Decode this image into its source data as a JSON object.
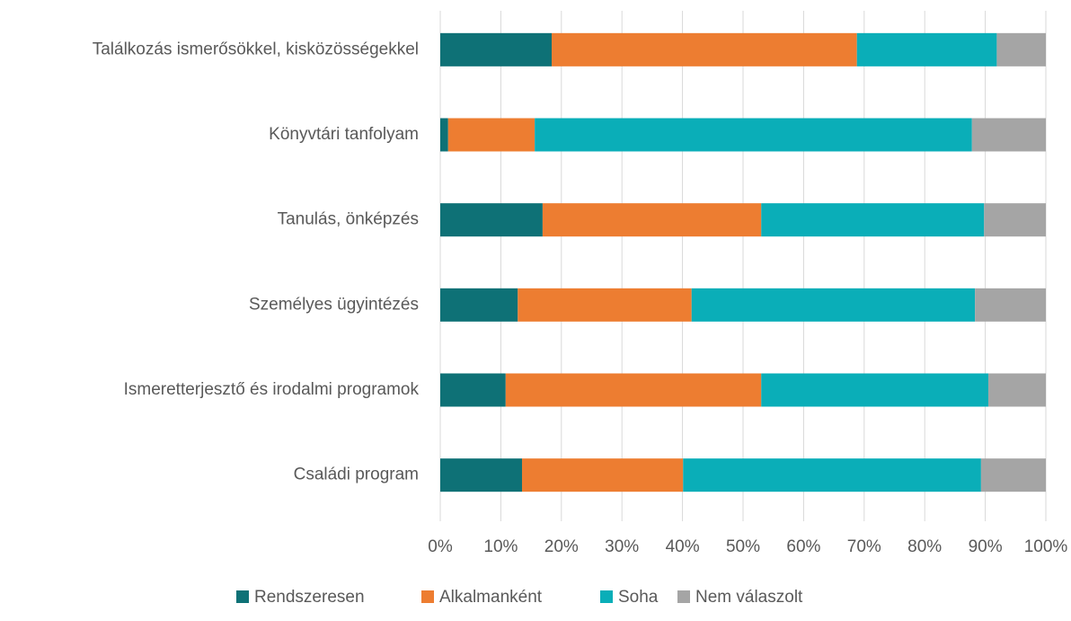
{
  "chart_data": {
    "type": "stacked-bar-horizontal",
    "categories": [
      "Találkozás ismerősökkel, kisközösségekkel",
      "Könyvtári tanfolyam",
      "Tanulás, önképzés",
      "Személyes ügyintézés",
      "Ismeretterjesztő és irodalmi programok",
      "Családi program"
    ],
    "series": [
      {
        "name": "Rendszeresen",
        "color": "#0e7176",
        "values": [
          18.4,
          1.3,
          16.9,
          12.8,
          10.8,
          13.5
        ]
      },
      {
        "name": "Alkalmanként",
        "color": "#ed7d31",
        "values": [
          50.4,
          14.3,
          36.1,
          28.7,
          42.2,
          26.6
        ]
      },
      {
        "name": "Soha",
        "color": "#0aaeb8",
        "values": [
          23.1,
          72.2,
          36.8,
          46.8,
          37.5,
          49.2
        ]
      },
      {
        "name": "Nem válaszolt",
        "color": "#a5a5a5",
        "values": [
          8.1,
          12.2,
          10.2,
          11.7,
          9.5,
          10.7
        ]
      }
    ],
    "xlim": [
      0,
      100
    ],
    "xticks": [
      {
        "value": 0,
        "label": "0%"
      },
      {
        "value": 10,
        "label": "10%"
      },
      {
        "value": 20,
        "label": "20%"
      },
      {
        "value": 30,
        "label": "30%"
      },
      {
        "value": 40,
        "label": "40%"
      },
      {
        "value": 50,
        "label": "50%"
      },
      {
        "value": 60,
        "label": "60%"
      },
      {
        "value": 70,
        "label": "70%"
      },
      {
        "value": 80,
        "label": "80%"
      },
      {
        "value": 90,
        "label": "90%"
      },
      {
        "value": 100,
        "label": "100%"
      }
    ],
    "grid": true,
    "legend": "bottom"
  }
}
